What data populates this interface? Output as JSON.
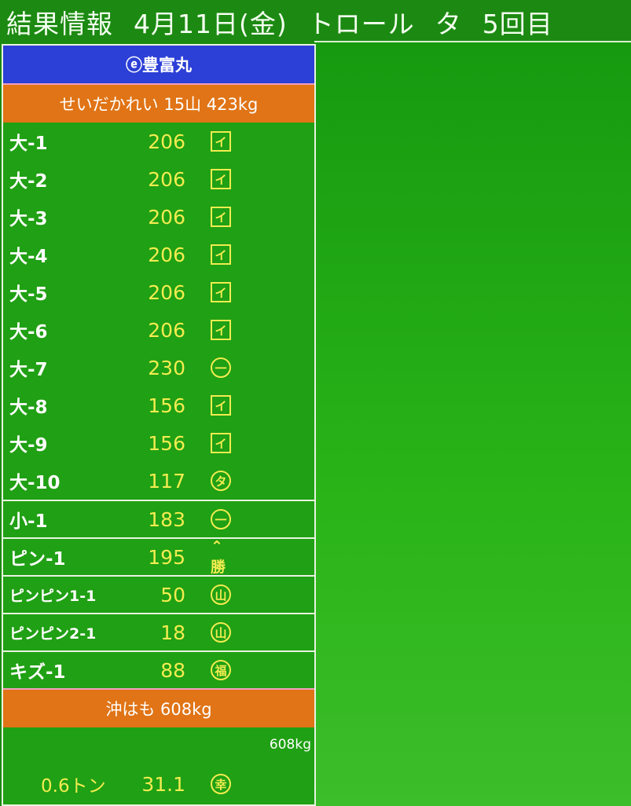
{
  "header": {
    "title": "結果情報",
    "date": "4月11日(金)",
    "method": "トロール",
    "period": "タ",
    "round": "5回目"
  },
  "boat": {
    "name": "ⓔ豊富丸"
  },
  "section1": {
    "label": "せいだかれい 15山 423kg"
  },
  "rows": [
    {
      "label": "大-1",
      "value": "206",
      "mark": "イ",
      "mark_style": "square"
    },
    {
      "label": "大-2",
      "value": "206",
      "mark": "イ",
      "mark_style": "square"
    },
    {
      "label": "大-3",
      "value": "206",
      "mark": "イ",
      "mark_style": "square"
    },
    {
      "label": "大-4",
      "value": "206",
      "mark": "イ",
      "mark_style": "square"
    },
    {
      "label": "大-5",
      "value": "206",
      "mark": "イ",
      "mark_style": "square"
    },
    {
      "label": "大-6",
      "value": "206",
      "mark": "イ",
      "mark_style": "square"
    },
    {
      "label": "大-7",
      "value": "230",
      "mark": "一",
      "mark_style": "circle"
    },
    {
      "label": "大-8",
      "value": "156",
      "mark": "イ",
      "mark_style": "square"
    },
    {
      "label": "大-9",
      "value": "156",
      "mark": "イ",
      "mark_style": "square"
    },
    {
      "label": "大-10",
      "value": "117",
      "mark": "タ",
      "mark_style": "circle"
    },
    {
      "label": "小-1",
      "value": "183",
      "mark": "一",
      "mark_style": "circle"
    },
    {
      "label": "ピン-1",
      "value": "195",
      "mark": "⌃勝",
      "mark_style": "roof"
    },
    {
      "label": "ピンピン1-1",
      "value": "50",
      "mark": "山",
      "mark_style": "circle"
    },
    {
      "label": "ピンピン2-1",
      "value": "18",
      "mark": "山",
      "mark_style": "circle"
    },
    {
      "label": "キズ-1",
      "value": "88",
      "mark": "福",
      "mark_style": "circle"
    }
  ],
  "section2": {
    "label": "沖はも 608kg",
    "total": "608kg",
    "tons": "0.6トン",
    "price": "31.1",
    "mark": "幸",
    "mark_style": "circle"
  },
  "colors": {
    "background": "#1c8a12",
    "boat_bar": "#2c3fd6",
    "section_bar": "#e07416",
    "value_text": "#f2ec50"
  }
}
